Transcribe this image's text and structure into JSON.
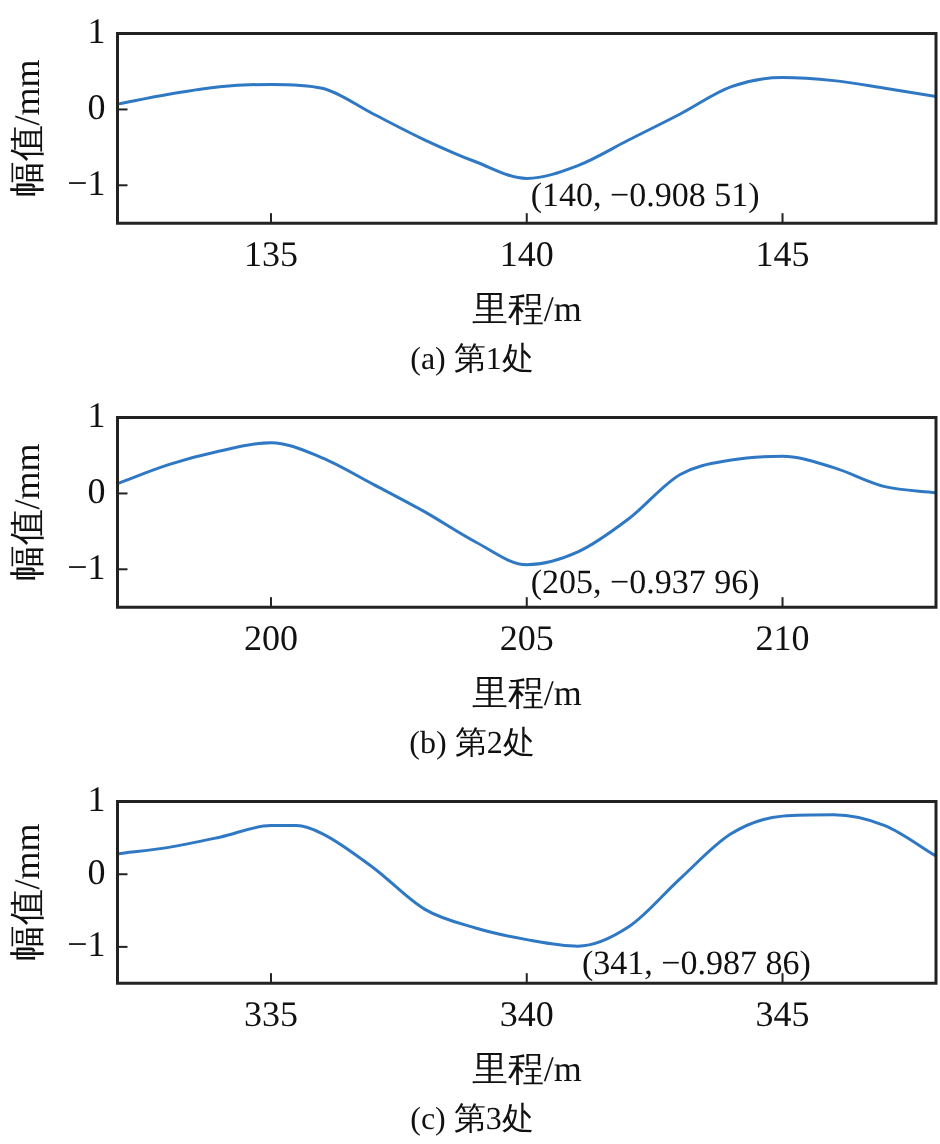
{
  "chart_data": [
    {
      "type": "line",
      "title": "(a) 第1处",
      "xlabel": "里程/m",
      "ylabel": "幅值/mm",
      "color": "#2f78c4",
      "marker": "none",
      "x": [
        132,
        133,
        134,
        135,
        136,
        137,
        138,
        139,
        140,
        141,
        142,
        143,
        144,
        145,
        146,
        147,
        148
      ],
      "values": [
        0.07,
        0.2,
        0.3,
        0.33,
        0.28,
        -0.06,
        -0.4,
        -0.69,
        -0.91,
        -0.74,
        -0.4,
        -0.06,
        0.3,
        0.42,
        0.38,
        0.28,
        0.17
      ],
      "xlim": [
        132,
        148
      ],
      "ylim": [
        -1.5,
        1
      ],
      "xticks": [
        135,
        140,
        145
      ],
      "yticks": [
        -1,
        0,
        1
      ],
      "annotations": [
        {
          "text": "(140, −0.908 51)",
          "x": 140,
          "y": -0.90851
        }
      ]
    },
    {
      "type": "line",
      "title": "(b) 第2处",
      "xlabel": "里程/m",
      "ylabel": "幅值/mm",
      "color": "#2f78c4",
      "marker": "none",
      "x": [
        197,
        198,
        199,
        200,
        201,
        202,
        203,
        204,
        205,
        206,
        207,
        208,
        209,
        210,
        211,
        212,
        213
      ],
      "values": [
        0.13,
        0.38,
        0.56,
        0.67,
        0.47,
        0.12,
        -0.24,
        -0.64,
        -0.94,
        -0.77,
        -0.33,
        0.25,
        0.44,
        0.49,
        0.34,
        0.09,
        0.01
      ],
      "xlim": [
        197,
        213
      ],
      "ylim": [
        -1.5,
        1
      ],
      "xticks": [
        200,
        205,
        210
      ],
      "yticks": [
        -1,
        0,
        1
      ],
      "annotations": [
        {
          "text": "(205, −0.937 96)",
          "x": 205,
          "y": -0.93796
        }
      ]
    },
    {
      "type": "line",
      "title": "(c) 第3处",
      "xlabel": "里程/m",
      "ylabel": "幅值/mm",
      "color": "#2f78c4",
      "marker": "none",
      "x": [
        332,
        333,
        334,
        335,
        335.5,
        336,
        337,
        338,
        339,
        340,
        341,
        342,
        343,
        344,
        345,
        346,
        347,
        348
      ],
      "values": [
        0.28,
        0.37,
        0.51,
        0.67,
        0.67,
        0.56,
        0.09,
        -0.48,
        -0.74,
        -0.9,
        -0.99,
        -0.72,
        -0.06,
        0.56,
        0.8,
        0.82,
        0.67,
        0.25
      ],
      "xlim": [
        332,
        348
      ],
      "ylim": [
        -1.5,
        1
      ],
      "xticks": [
        335,
        340,
        345
      ],
      "yticks": [
        -1,
        0,
        1
      ],
      "annotations": [
        {
          "text": "(341, −0.987 86)",
          "x": 341,
          "y": -0.98786
        }
      ]
    }
  ]
}
